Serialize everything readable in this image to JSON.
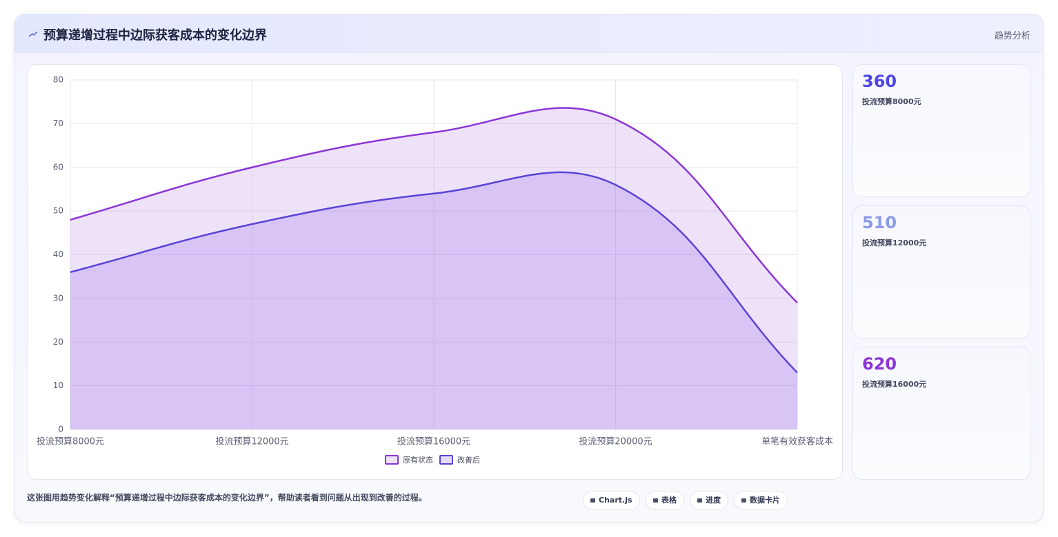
{
  "header": {
    "title": "预算递增过程中边际获客成本的变化边界",
    "tag": "趋势分析"
  },
  "chart_data": {
    "type": "area",
    "categories": [
      "投流预算8000元",
      "投流预算12000元",
      "投流预算16000元",
      "投流预算20000元",
      "单笔有效获客成本"
    ],
    "series": [
      {
        "name": "原有状态",
        "color": "#8b35d6",
        "fill": "rgba(170,110,225,0.2)",
        "values": [
          48,
          60,
          68,
          71,
          29
        ]
      },
      {
        "name": "改善后",
        "color": "#5944d6",
        "fill": "rgba(150,110,235,0.25)",
        "values": [
          36,
          47,
          54,
          56,
          13
        ]
      }
    ],
    "ylim": [
      0,
      80
    ],
    "yticks": [
      0,
      10,
      20,
      30,
      40,
      50,
      60,
      70,
      80
    ],
    "grid": true,
    "legend": "bottom"
  },
  "cards": [
    {
      "value": 360,
      "label": "投流预算8000元",
      "color": "#4f46e5"
    },
    {
      "value": 510,
      "label": "投流预算12000元",
      "color": "#8c9be6"
    },
    {
      "value": 620,
      "label": "投流预算16000元",
      "color": "#8b35d6"
    }
  ],
  "footer": {
    "text": "这张图用趋势变化解释“预算递增过程中边际获客成本的变化边界”，帮助读者看到问题从出现到改善的过程。",
    "chips": [
      "Chart.js",
      "表格",
      "进度",
      "数据卡片"
    ]
  }
}
